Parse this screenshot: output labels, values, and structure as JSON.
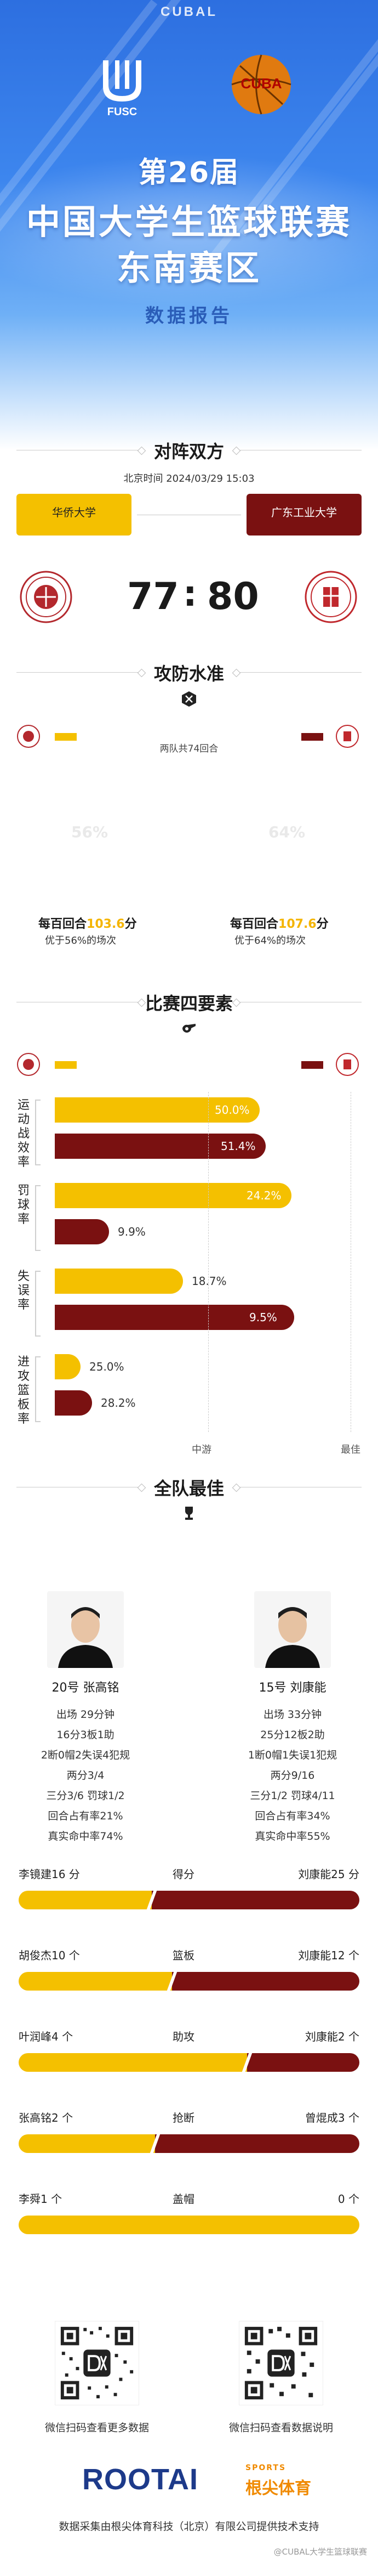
{
  "header": {
    "brand": "CUBAL",
    "fusc_label": "FUSC",
    "cuba_label": "CUBA",
    "title_line1": "第26届",
    "title_line2": "中国大学生篮球联赛",
    "title_line3": "东南赛区",
    "subtitle": "数据报告"
  },
  "matchup": {
    "section_title": "对阵双方",
    "time": "北京时间 2024/03/29 15:03",
    "home": {
      "name": "华侨大学",
      "score": "77",
      "color": "#f4c000"
    },
    "away": {
      "name": "广东工业大学",
      "score": "80",
      "color": "#7a1111"
    },
    "colon": ":"
  },
  "offense_defense": {
    "section_title": "攻防水准",
    "rounds": "两队共74回合",
    "home_pct_faded": "56%",
    "away_pct_faded": "64%",
    "home_ppr_prefix": "每百回合",
    "home_ppr_value": "103.6",
    "home_ppr_suffix": "分",
    "home_ppr_sub": "优于56%的场次",
    "away_ppr_prefix": "每百回合",
    "away_ppr_value": "107.6",
    "away_ppr_suffix": "分",
    "away_ppr_sub": "优于64%的场次"
  },
  "four_factors": {
    "section_title": "比赛四要素",
    "factors": [
      {
        "label": "运动战效率",
        "home": "50.0%",
        "away": "51.4%",
        "home_frac": 0.72,
        "away_frac": 0.74
      },
      {
        "label": "罚球率",
        "home": "24.2%",
        "away": "9.9%",
        "home_frac": 0.83,
        "away_frac": 0.19
      },
      {
        "label": "失误率",
        "home": "18.7%",
        "away": "9.5%",
        "home_frac": 0.45,
        "away_frac": 0.84
      },
      {
        "label": "进攻篮板率",
        "home": "25.0%",
        "away": "28.2%",
        "home_frac": 0.09,
        "away_frac": 0.13
      }
    ],
    "axis_mid": "中游",
    "axis_best": "最佳"
  },
  "best": {
    "section_title": "全队最佳",
    "home_player": {
      "name": "20号 张高铭",
      "lines": [
        "出场 29分钟",
        "16分3板1助",
        "2断0帽2失误4犯规",
        "两分3/4",
        "三分3/6 罚球1/2",
        "回合占有率21%",
        "真实命中率74%"
      ]
    },
    "away_player": {
      "name": "15号 刘康能",
      "lines": [
        "出场 33分钟",
        "25分12板2助",
        "1断0帽1失误1犯规",
        "两分9/16",
        "三分1/2 罚球4/11",
        "回合占有率34%",
        "真实命中率55%"
      ]
    },
    "comparisons": [
      {
        "home": "李镜建16 分",
        "stat": "得分",
        "away": "刘康能25 分",
        "home_frac": 0.39
      },
      {
        "home": "胡俊杰10 个",
        "stat": "篮板",
        "away": "刘康能12 个",
        "home_frac": 0.45
      },
      {
        "home": "叶润峰4 个",
        "stat": "助攻",
        "away": "刘康能2 个",
        "home_frac": 0.67
      },
      {
        "home": "张高铭2 个",
        "stat": "抢断",
        "away": "曾焜成3 个",
        "home_frac": 0.4
      },
      {
        "home": "李舜1 个",
        "stat": "盖帽",
        "away": "0 个",
        "home_frac": 1.0
      }
    ]
  },
  "footer": {
    "qr_left_caption": "微信扫码查看更多数据",
    "qr_right_caption": "微信扫码查看数据说明",
    "brand": "ROOTAI",
    "brand_cn": "根尖体育",
    "brand_sports": "SPORTS",
    "credit": "数据采集由根尖体育科技（北京）有限公司提供技术支持",
    "watermark": "@CUBAL大学生篮球联赛"
  },
  "colors": {
    "home": "#f4c000",
    "away": "#7a1111",
    "hero": "#2d6fe0"
  }
}
